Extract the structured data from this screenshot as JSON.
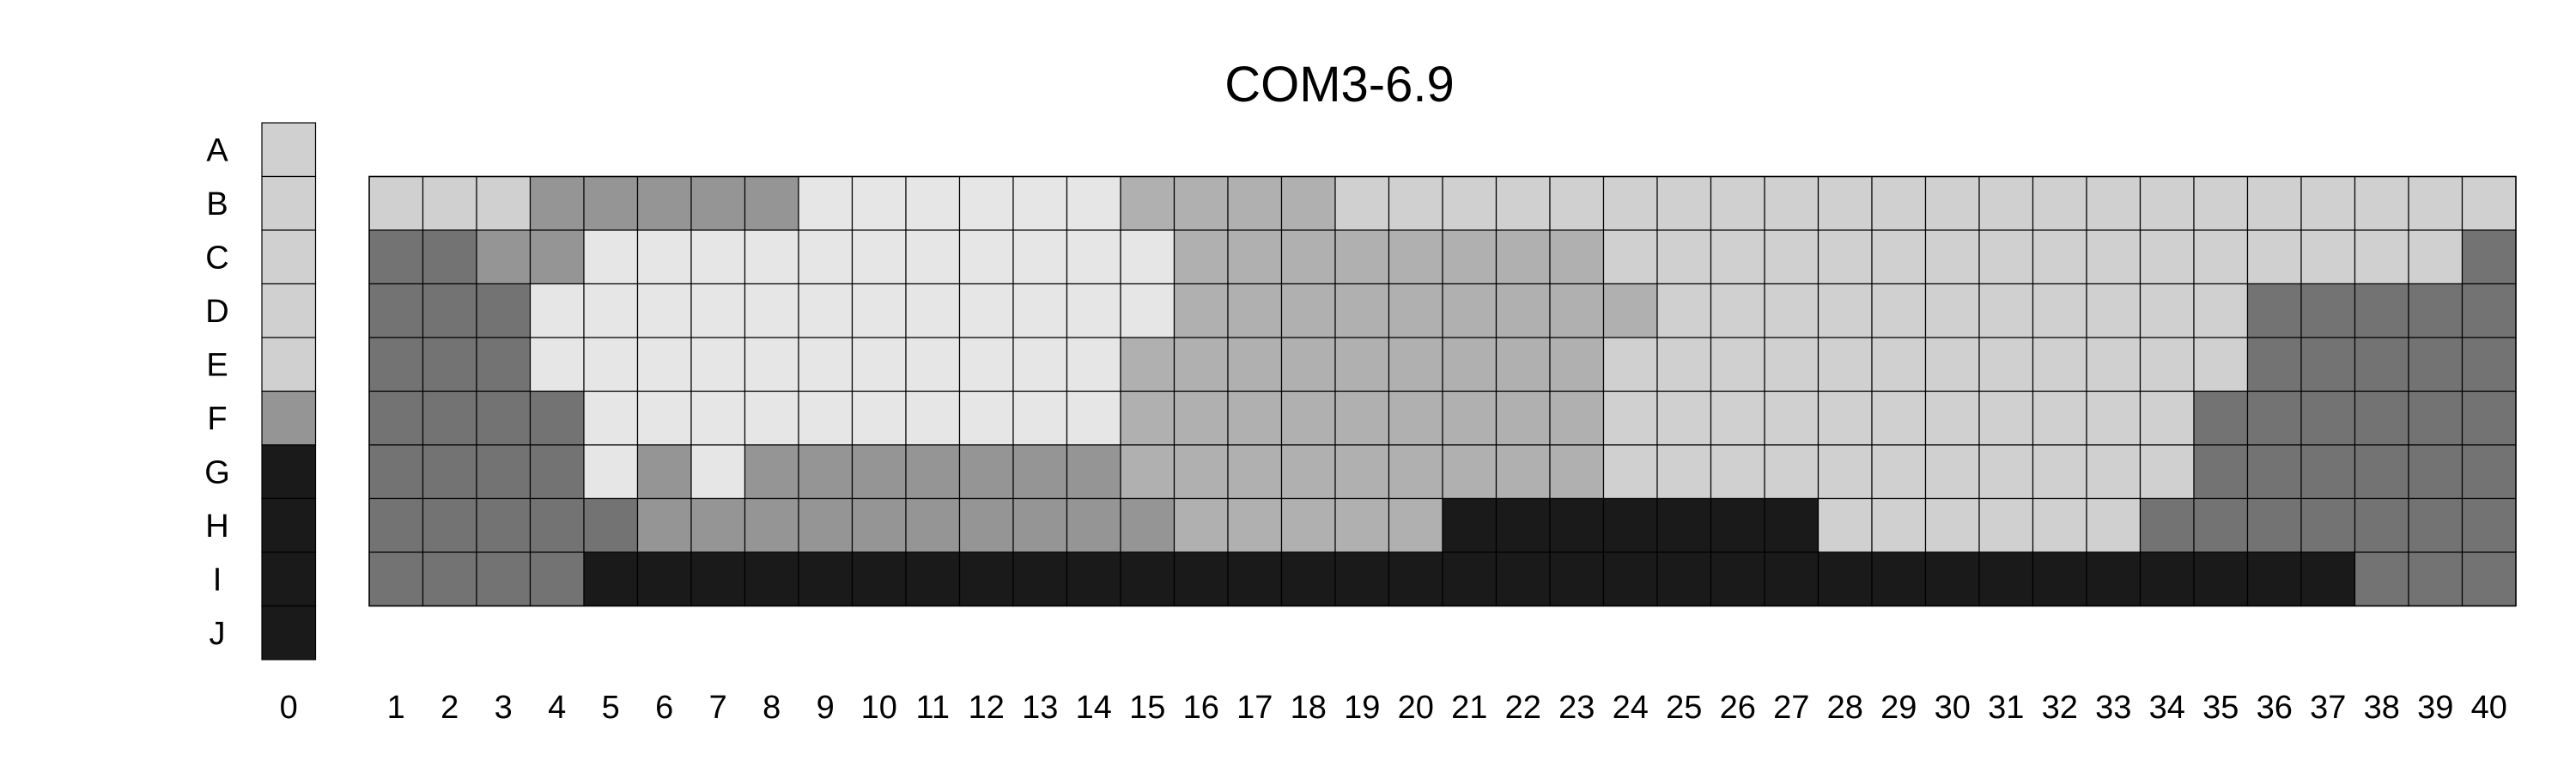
{
  "chart_data": {
    "type": "heatmap",
    "title": "COM3-6.9",
    "rows": [
      "A",
      "B",
      "C",
      "D",
      "E",
      "F",
      "G",
      "H",
      "I",
      "J"
    ],
    "key_column": {
      "label": "0",
      "levels": [
        "A",
        "B",
        "C",
        "D",
        "E",
        "F",
        "G",
        "H",
        "I",
        "J"
      ],
      "level_values": [
        1,
        1,
        1,
        1,
        1,
        3,
        5,
        5,
        5,
        5
      ]
    },
    "columns": [
      "1",
      "2",
      "3",
      "4",
      "5",
      "6",
      "7",
      "8",
      "9",
      "10",
      "11",
      "12",
      "13",
      "14",
      "15",
      "16",
      "17",
      "18",
      "19",
      "20",
      "21",
      "22",
      "23",
      "24",
      "25",
      "26",
      "27",
      "28",
      "29",
      "30",
      "31",
      "32",
      "33",
      "34",
      "35",
      "36",
      "37",
      "38",
      "39",
      "40"
    ],
    "grid_rows": [
      "B",
      "C",
      "D",
      "E",
      "F",
      "G",
      "H",
      "I"
    ],
    "value_scale": {
      "0": "#e6e6e6",
      "1": "#d0d0d0",
      "2": "#b0b0b0",
      "3": "#959595",
      "4": "#737373",
      "5": "#1a1a1a"
    },
    "values": [
      [
        1,
        1,
        1,
        3,
        3,
        3,
        3,
        3,
        0,
        0,
        0,
        0,
        0,
        0,
        2,
        2,
        2,
        2,
        1,
        1,
        1,
        1,
        1,
        1,
        1,
        1,
        1,
        1,
        1,
        1,
        1,
        1,
        1,
        1,
        1,
        1,
        1,
        1,
        1,
        1
      ],
      [
        4,
        4,
        3,
        3,
        0,
        0,
        0,
        0,
        0,
        0,
        0,
        0,
        0,
        0,
        0,
        2,
        2,
        2,
        2,
        2,
        2,
        2,
        2,
        1,
        1,
        1,
        1,
        1,
        1,
        1,
        1,
        1,
        1,
        1,
        1,
        1,
        1,
        1,
        1,
        4
      ],
      [
        4,
        4,
        4,
        0,
        0,
        0,
        0,
        0,
        0,
        0,
        0,
        0,
        0,
        0,
        0,
        2,
        2,
        2,
        2,
        2,
        2,
        2,
        2,
        2,
        1,
        1,
        1,
        1,
        1,
        1,
        1,
        1,
        1,
        1,
        1,
        4,
        4,
        4,
        4,
        4
      ],
      [
        4,
        4,
        4,
        0,
        0,
        0,
        0,
        0,
        0,
        0,
        0,
        0,
        0,
        0,
        2,
        2,
        2,
        2,
        2,
        2,
        2,
        2,
        2,
        1,
        1,
        1,
        1,
        1,
        1,
        1,
        1,
        1,
        1,
        1,
        1,
        4,
        4,
        4,
        4,
        4
      ],
      [
        4,
        4,
        4,
        4,
        0,
        0,
        0,
        0,
        0,
        0,
        0,
        0,
        0,
        0,
        2,
        2,
        2,
        2,
        2,
        2,
        2,
        2,
        2,
        1,
        1,
        1,
        1,
        1,
        1,
        1,
        1,
        1,
        1,
        1,
        4,
        4,
        4,
        4,
        4,
        4
      ],
      [
        4,
        4,
        4,
        4,
        0,
        3,
        0,
        3,
        3,
        3,
        3,
        3,
        3,
        3,
        2,
        2,
        2,
        2,
        2,
        2,
        2,
        2,
        2,
        1,
        1,
        1,
        1,
        1,
        1,
        1,
        1,
        1,
        1,
        1,
        4,
        4,
        4,
        4,
        4,
        4
      ],
      [
        4,
        4,
        4,
        4,
        4,
        3,
        3,
        3,
        3,
        3,
        3,
        3,
        3,
        3,
        3,
        2,
        2,
        2,
        2,
        2,
        5,
        5,
        5,
        5,
        5,
        5,
        5,
        1,
        1,
        1,
        1,
        1,
        1,
        4,
        4,
        4,
        4,
        4,
        4,
        4
      ],
      [
        4,
        4,
        4,
        4,
        5,
        5,
        5,
        5,
        5,
        5,
        5,
        5,
        5,
        5,
        5,
        5,
        5,
        5,
        5,
        5,
        5,
        5,
        5,
        5,
        5,
        5,
        5,
        5,
        5,
        5,
        5,
        5,
        5,
        5,
        5,
        5,
        5,
        4,
        4,
        4
      ]
    ]
  }
}
